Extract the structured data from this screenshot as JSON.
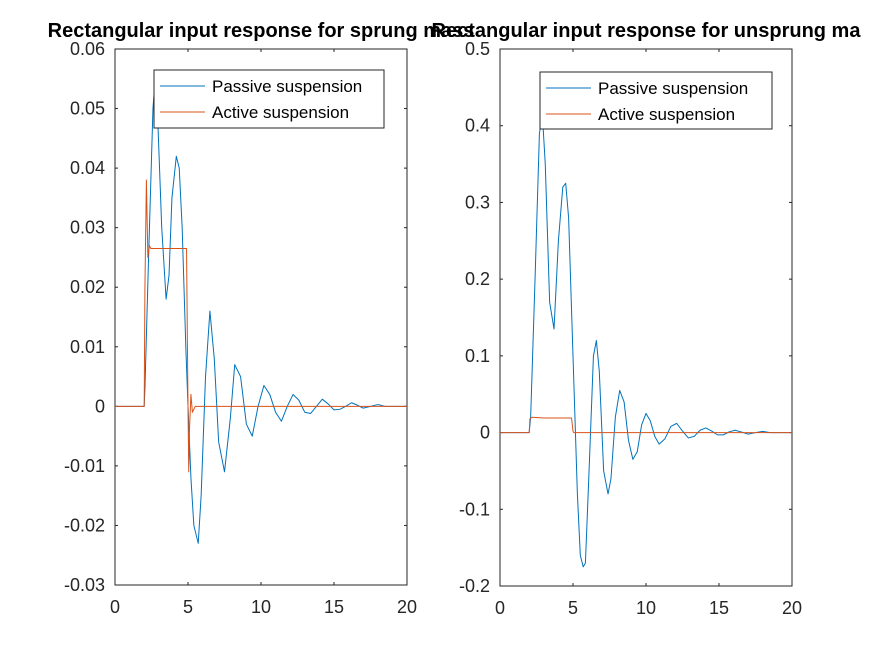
{
  "chart_data": [
    {
      "type": "line",
      "title": "Rectangular input response for sprung mass",
      "xlabel": "",
      "ylabel": "",
      "xlim": [
        0,
        20
      ],
      "ylim": [
        -0.03,
        0.06
      ],
      "x_ticks": [
        "0",
        "5",
        "10",
        "15",
        "20"
      ],
      "y_ticks": [
        "0.06",
        "0.05",
        "0.04",
        "0.03",
        "0.02",
        "0.01",
        "0",
        "-0.01",
        "-0.02",
        "-0.03"
      ],
      "legend_position": "top-right",
      "series": [
        {
          "name": "Passive suspension",
          "color": "#0072BD",
          "x": [
            0,
            1,
            2,
            2.05,
            2.3,
            2.6,
            2.75,
            2.9,
            3.2,
            3.5,
            3.7,
            3.9,
            4.2,
            4.4,
            4.6,
            4.85,
            5.0,
            5.2,
            5.4,
            5.7,
            5.9,
            6.2,
            6.5,
            6.8,
            7.1,
            7.5,
            7.9,
            8.2,
            8.6,
            9.0,
            9.4,
            9.8,
            10.2,
            10.6,
            11.0,
            11.4,
            11.8,
            12.2,
            12.6,
            13.0,
            13.4,
            13.8,
            14.2,
            14.6,
            15.0,
            15.4,
            15.8,
            16.2,
            16.6,
            17.0,
            17.5,
            18.0,
            18.5,
            19.0,
            20
          ],
          "y": [
            0,
            0,
            0,
            0.003,
            0.025,
            0.05,
            0.055,
            0.05,
            0.03,
            0.018,
            0.022,
            0.035,
            0.042,
            0.04,
            0.03,
            0.01,
            0,
            -0.012,
            -0.02,
            -0.023,
            -0.015,
            0.005,
            0.016,
            0.008,
            -0.006,
            -0.011,
            -0.002,
            0.007,
            0.005,
            -0.003,
            -0.005,
            0.0,
            0.0035,
            0.002,
            -0.001,
            -0.0025,
            0.0,
            0.002,
            0.001,
            -0.001,
            -0.0012,
            0.0,
            0.0012,
            0.0004,
            -0.0006,
            -0.0005,
            0.0,
            0.0006,
            0.0002,
            -0.0003,
            0.0,
            0.0003,
            0.0,
            0.0,
            0.0
          ]
        },
        {
          "name": "Active suspension",
          "color": "#D95319",
          "x": [
            0,
            1,
            2,
            2.05,
            2.15,
            2.25,
            2.35,
            2.45,
            2.6,
            3.0,
            4.0,
            4.9,
            5.0,
            5.05,
            5.1,
            5.2,
            5.3,
            5.5,
            6,
            8,
            10,
            15,
            20
          ],
          "y": [
            0,
            0,
            0,
            0.02,
            0.038,
            0.025,
            0.027,
            0.0265,
            0.0265,
            0.0265,
            0.0265,
            0.0265,
            0.0,
            -0.011,
            -0.004,
            0.002,
            -0.001,
            0.0,
            0.0,
            0.0,
            0.0,
            0.0,
            0.0
          ]
        }
      ]
    },
    {
      "type": "line",
      "title": "Rectangular input response for unsprung ma",
      "xlabel": "",
      "ylabel": "",
      "xlim": [
        0,
        20
      ],
      "ylim": [
        -0.2,
        0.5
      ],
      "x_ticks": [
        "0",
        "5",
        "10",
        "15",
        "20"
      ],
      "y_ticks": [
        "0.5",
        "0.4",
        "0.3",
        "0.2",
        "0.1",
        "0",
        "-0.1",
        "-0.2"
      ],
      "legend_position": "top-right",
      "series": [
        {
          "name": "Passive suspension",
          "color": "#0072BD",
          "x": [
            0,
            1,
            2,
            2.1,
            2.4,
            2.7,
            2.9,
            3.1,
            3.4,
            3.7,
            4.0,
            4.3,
            4.5,
            4.7,
            5.0,
            5.3,
            5.5,
            5.7,
            5.85,
            6.1,
            6.4,
            6.6,
            6.8,
            7.1,
            7.4,
            7.6,
            7.9,
            8.2,
            8.5,
            8.8,
            9.1,
            9.4,
            9.7,
            10.0,
            10.3,
            10.6,
            10.9,
            11.3,
            11.7,
            12.1,
            12.5,
            12.9,
            13.3,
            13.7,
            14.1,
            14.5,
            14.9,
            15.3,
            15.7,
            16.1,
            16.5,
            17.0,
            17.5,
            18.0,
            18.5,
            19.0,
            20
          ],
          "y": [
            0,
            0,
            0,
            0.02,
            0.2,
            0.39,
            0.415,
            0.35,
            0.17,
            0.135,
            0.25,
            0.32,
            0.325,
            0.28,
            0.1,
            -0.08,
            -0.16,
            -0.175,
            -0.17,
            -0.05,
            0.1,
            0.12,
            0.08,
            -0.05,
            -0.08,
            -0.06,
            0.02,
            0.055,
            0.04,
            -0.01,
            -0.035,
            -0.025,
            0.01,
            0.025,
            0.015,
            -0.005,
            -0.015,
            -0.008,
            0.008,
            0.012,
            0.002,
            -0.007,
            -0.005,
            0.003,
            0.006,
            0.002,
            -0.003,
            -0.003,
            0.001,
            0.003,
            0.001,
            -0.002,
            0.0,
            0.0015,
            0.0,
            0.0,
            0.0
          ]
        },
        {
          "name": "Active suspension",
          "color": "#D95319",
          "x": [
            0,
            1,
            2,
            2.05,
            2.2,
            3,
            4,
            4.9,
            5.0,
            5.05,
            5.2,
            6,
            10,
            15,
            20
          ],
          "y": [
            0,
            0,
            0,
            0.018,
            0.02,
            0.019,
            0.019,
            0.019,
            0.002,
            0.0,
            0.0,
            0.0,
            0.0,
            0.0,
            0.0
          ]
        }
      ]
    }
  ]
}
